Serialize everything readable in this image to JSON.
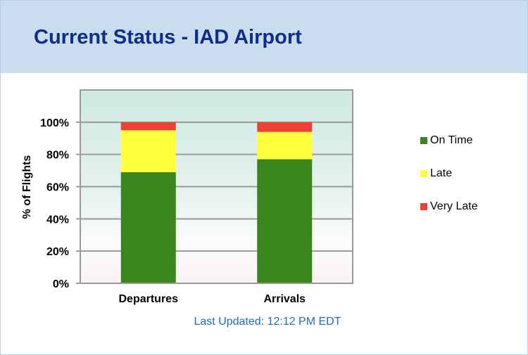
{
  "header": {
    "title": "Current Status - IAD Airport"
  },
  "footer": {
    "last_updated": "Last Updated: 12:12 PM EDT"
  },
  "chart_data": {
    "type": "bar",
    "stacked": true,
    "categories": [
      "Departures",
      "Arrivals"
    ],
    "series": [
      {
        "name": "On Time",
        "color": "#3a861d",
        "values": [
          69,
          77
        ]
      },
      {
        "name": "Late",
        "color": "#ffff3c",
        "values": [
          26,
          17
        ]
      },
      {
        "name": "Very Late",
        "color": "#ee4035",
        "values": [
          5,
          6
        ]
      }
    ],
    "ylabel": "% of Flights",
    "xlabel": "",
    "ylim": [
      0,
      120
    ],
    "yticks": [
      0,
      20,
      40,
      60,
      80,
      100
    ],
    "ytick_labels": [
      "0%",
      "20%",
      "40%",
      "60%",
      "80%",
      "100%"
    ],
    "grid": true,
    "legend_position": "right"
  }
}
